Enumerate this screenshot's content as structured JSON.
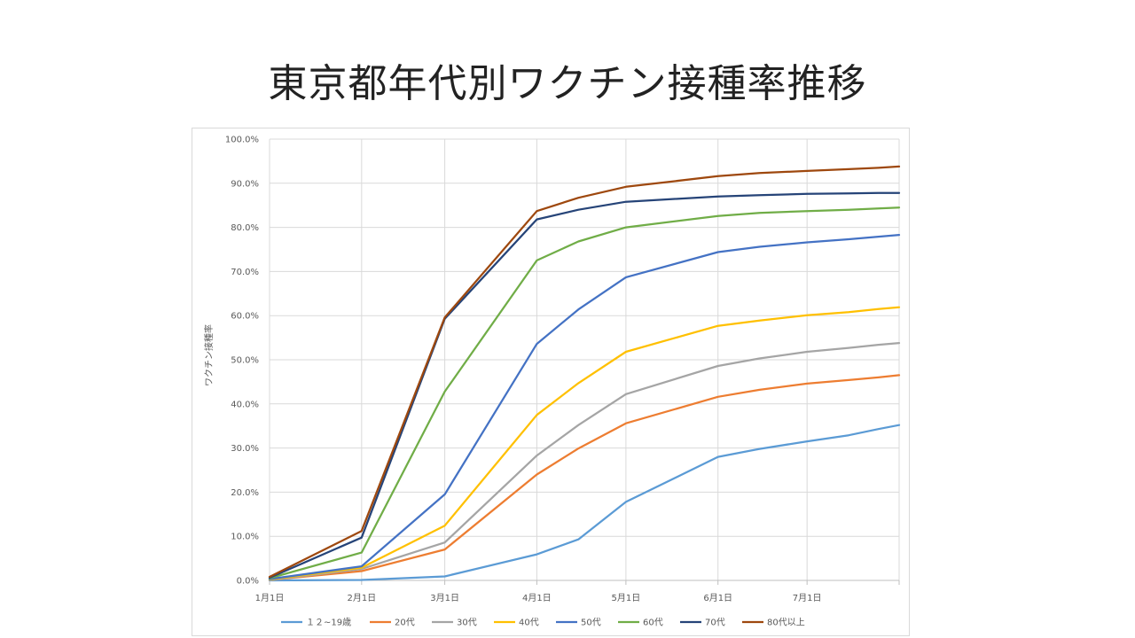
{
  "slide": {
    "title": "東京都年代別ワクチン接種率推移"
  },
  "chart_data": {
    "type": "line",
    "title": "東京都年代別ワクチン接種率推移",
    "xlabel": "",
    "ylabel": "ワクチン接種率",
    "x_tick_labels": [
      "1月1日",
      "2月1日",
      "3月1日",
      "4月1日",
      "5月1日",
      "6月1日",
      "7月1日"
    ],
    "x_tick_values": [
      "2021-01-01",
      "2021-02-01",
      "2021-03-01",
      "2021-04-01",
      "2021-05-01",
      "2021-06-01",
      "2021-07-01"
    ],
    "xlim": [
      "2021-01-01",
      "2021-08-01"
    ],
    "y_tick_labels": [
      "0.0%",
      "10.0%",
      "20.0%",
      "30.0%",
      "40.0%",
      "50.0%",
      "60.0%",
      "70.0%",
      "80.0%",
      "90.0%",
      "100.0%"
    ],
    "ylim": [
      0,
      100
    ],
    "grid": true,
    "legend_position": "bottom",
    "x": [
      "2021-01-01",
      "2021-02-01",
      "2021-03-01",
      "2021-04-01",
      "2021-04-15",
      "2021-05-01",
      "2021-06-01",
      "2021-06-15",
      "2021-07-01",
      "2021-07-15",
      "2021-07-25",
      "2021-08-01"
    ],
    "series": [
      {
        "name": "１２~19歳",
        "color": "#5b9bd5",
        "values": [
          0.0,
          0.1,
          0.9,
          5.9,
          9.3,
          17.8,
          28.0,
          29.8,
          31.5,
          32.9,
          34.3,
          35.2
        ]
      },
      {
        "name": "20代",
        "color": "#ed7d31",
        "values": [
          0.1,
          2.1,
          7.0,
          24.0,
          29.9,
          35.6,
          41.6,
          43.2,
          44.6,
          45.4,
          46.0,
          46.5
        ]
      },
      {
        "name": "30代",
        "color": "#a5a5a5",
        "values": [
          0.1,
          2.6,
          8.6,
          28.3,
          35.2,
          42.2,
          48.6,
          50.3,
          51.8,
          52.7,
          53.4,
          53.8
        ]
      },
      {
        "name": "40代",
        "color": "#ffc000",
        "values": [
          0.2,
          2.9,
          12.4,
          37.5,
          44.7,
          51.8,
          57.7,
          58.9,
          60.1,
          60.8,
          61.5,
          61.9
        ]
      },
      {
        "name": "50代",
        "color": "#4472c4",
        "values": [
          0.3,
          3.2,
          19.5,
          53.6,
          61.4,
          68.7,
          74.4,
          75.6,
          76.6,
          77.3,
          77.9,
          78.3
        ]
      },
      {
        "name": "60代",
        "color": "#70ad47",
        "values": [
          0.5,
          6.3,
          42.8,
          72.5,
          76.8,
          80.0,
          82.6,
          83.3,
          83.7,
          84.0,
          84.3,
          84.5
        ]
      },
      {
        "name": "70代",
        "color": "#264478",
        "values": [
          0.6,
          9.7,
          59.3,
          81.8,
          84.0,
          85.8,
          87.0,
          87.3,
          87.6,
          87.7,
          87.8,
          87.8
        ]
      },
      {
        "name": "80代以上",
        "color": "#9e480e",
        "values": [
          0.8,
          11.2,
          59.6,
          83.7,
          86.7,
          89.2,
          91.6,
          92.3,
          92.8,
          93.2,
          93.5,
          93.8
        ]
      }
    ]
  }
}
